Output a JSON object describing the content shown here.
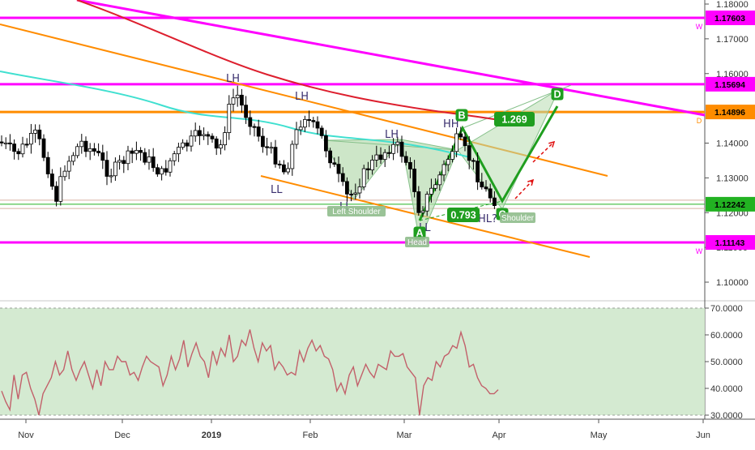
{
  "chart_data": [
    {
      "type": "candlestick",
      "symbol_note": "",
      "price_axis": {
        "ticks": [
          "1.18000",
          "1.17000",
          "1.16000",
          "1.14000",
          "1.13000",
          "1.12000",
          "1.11000",
          "1.10000"
        ],
        "ylim": [
          1.0935,
          1.1815
        ]
      },
      "time_axis": {
        "ticks": [
          "Nov",
          "Dec",
          "2019",
          "Feb",
          "Mar",
          "Apr",
          "May",
          "Jun"
        ]
      },
      "price_tags": [
        {
          "label": "1.17603",
          "value": 1.17603,
          "color": "#ff00ff"
        },
        {
          "label": "1.15694",
          "value": 1.15694,
          "color": "#ff00ff"
        },
        {
          "label": "1.14896",
          "value": 1.14896,
          "color": "#ff8c00"
        },
        {
          "label": "1.12242",
          "value": 1.12242,
          "color": "#22b222"
        },
        {
          "label": "1.11143",
          "value": 1.11143,
          "color": "#ff00ff"
        }
      ],
      "side_letters": [
        {
          "text": "W",
          "value": 1.17603
        },
        {
          "text": "D",
          "value": 1.14896
        },
        {
          "text": "W",
          "value": 1.11143
        }
      ],
      "swing_labels": [
        "LH",
        "LH",
        "LL",
        "LL",
        "LH",
        "HH",
        "LL",
        "HL?"
      ],
      "pattern_points": [
        "A",
        "B",
        "C",
        "D"
      ],
      "ratios": [
        "1.269",
        "0.793"
      ],
      "shoulder_labels": [
        "Left Shoulder",
        "Head",
        "Shoulder"
      ],
      "colors": {
        "bull_candle": "#ffffff",
        "bear_candle": "#000000",
        "ema_fast": "#40e0d0",
        "ema_slow": "#dd1f2e",
        "horizontal_magenta": "#ff00ff",
        "horizontal_orange": "#ff8c00",
        "pattern_green": "#1f9e1f",
        "pattern_fill": "#b8dcb0",
        "rsi_line": "#c2606a",
        "rsi_band": "#cfe8cc"
      }
    },
    {
      "type": "line",
      "indicator": "RSI",
      "y_ticks": [
        "70.0000",
        "60.0000",
        "50.0000",
        "40.0000",
        "30.0000"
      ],
      "ylim": [
        28.5,
        71.5
      ],
      "band": [
        30,
        70
      ],
      "values": [
        39,
        35,
        32,
        45,
        36,
        45,
        46,
        40,
        36,
        30,
        38,
        41,
        44,
        50,
        45,
        47,
        54,
        47,
        43,
        47,
        50,
        45,
        40,
        47,
        41,
        50,
        47,
        47,
        52,
        50,
        50,
        45,
        46,
        43,
        48,
        52,
        50,
        49,
        48,
        41,
        45,
        52,
        47,
        51,
        58,
        48,
        53,
        57,
        52,
        50,
        44,
        54,
        49,
        55,
        52,
        60,
        50,
        52,
        58,
        56,
        62,
        55,
        50,
        57,
        54,
        56,
        47,
        50,
        48,
        45,
        46,
        45,
        54,
        50,
        55,
        58,
        54,
        56,
        52,
        51,
        47,
        39,
        42,
        38,
        45,
        48,
        41,
        45,
        49,
        46,
        44,
        49,
        48,
        47,
        54,
        52,
        52,
        53,
        48,
        46,
        44,
        30,
        41,
        44,
        43,
        50,
        48,
        52,
        53,
        56,
        55,
        61,
        56,
        48,
        49,
        44,
        41,
        40,
        38,
        38,
        39.5
      ]
    }
  ]
}
